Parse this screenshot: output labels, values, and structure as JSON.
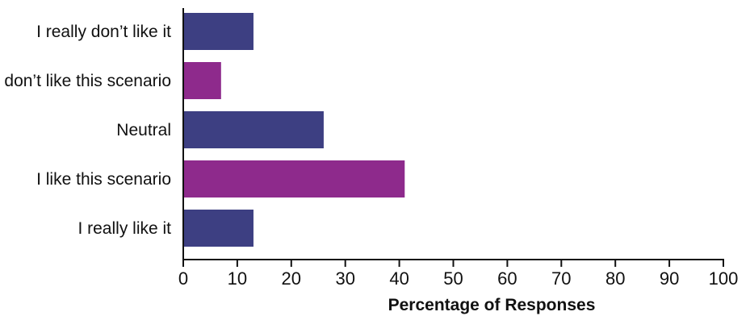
{
  "chart_data": {
    "type": "bar",
    "orientation": "horizontal",
    "categories": [
      "I really don’t like it",
      "I don’t like this scenario",
      "Neutral",
      "I like this scenario",
      "I really like it"
    ],
    "values": [
      13,
      7,
      26,
      41,
      13
    ],
    "bar_colors": [
      "#3d3f82",
      "#8e2a8c",
      "#3d3f82",
      "#8e2a8c",
      "#3d3f82"
    ],
    "xlabel": "Percentage of Responses",
    "xlim": [
      0,
      100
    ],
    "xticks": [
      0,
      10,
      20,
      30,
      40,
      50,
      60,
      70,
      80,
      90,
      100
    ],
    "grid": false,
    "legend": "none"
  }
}
